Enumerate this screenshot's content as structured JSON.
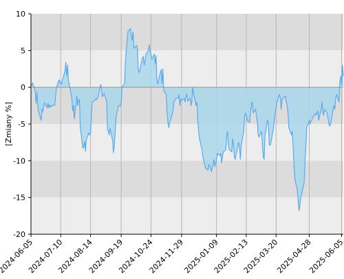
{
  "chart_data": {
    "type": "area",
    "title": "",
    "xlabel": "",
    "ylabel": "[Zmiany %]",
    "ylim": [
      -20,
      10
    ],
    "yticks": [
      10,
      5,
      0,
      -5,
      -10,
      -15,
      -20
    ],
    "ytick_labels": [
      "10",
      "5",
      "0",
      "-5",
      "-10",
      "-15",
      "-20"
    ],
    "xlim": [
      "2024-06-05",
      "2025-06-07"
    ],
    "xticks": [
      "2024-06-05",
      "2024-07-10",
      "2024-08-14",
      "2024-09-19",
      "2024-10-24",
      "2024-11-29",
      "2025-01-09",
      "2025-02-13",
      "2025-03-20",
      "2025-04-28",
      "2025-06-05"
    ],
    "grid": true,
    "legend": "none",
    "colors": {
      "band_dark": "#dcdcdc",
      "band_light": "#ededed",
      "line": "#5aa9f0",
      "fill": "#a9d7ea",
      "axis": "#000000",
      "vgrid": "#b4b4b4"
    },
    "series": [
      {
        "values": [
          [
            "2024-06-05",
            0.2
          ],
          [
            "2024-06-07",
            0.6
          ],
          [
            "2024-06-10",
            -0.5
          ],
          [
            "2024-06-11",
            -2.2
          ],
          [
            "2024-06-12",
            -0.7
          ],
          [
            "2024-06-13",
            -2.5
          ],
          [
            "2024-06-14",
            -3.3
          ],
          [
            "2024-06-17",
            -4.5
          ],
          [
            "2024-06-18",
            -3.0
          ],
          [
            "2024-06-19",
            -3.3
          ],
          [
            "2024-06-20",
            -2.5
          ],
          [
            "2024-06-21",
            -2.1
          ],
          [
            "2024-06-24",
            -2.8
          ],
          [
            "2024-06-25",
            -2.2
          ],
          [
            "2024-06-26",
            -2.8
          ],
          [
            "2024-06-27",
            -2.4
          ],
          [
            "2024-06-28",
            -2.7
          ],
          [
            "2024-07-01",
            -2.4
          ],
          [
            "2024-07-02",
            -2.5
          ],
          [
            "2024-07-03",
            -2.4
          ],
          [
            "2024-07-05",
            0.0
          ],
          [
            "2024-07-08",
            1.0
          ],
          [
            "2024-07-10",
            0.4
          ],
          [
            "2024-07-11",
            0.5
          ],
          [
            "2024-07-12",
            1.0
          ],
          [
            "2024-07-15",
            2.2
          ],
          [
            "2024-07-16",
            3.4
          ],
          [
            "2024-07-17",
            1.5
          ],
          [
            "2024-07-18",
            3.0
          ],
          [
            "2024-07-19",
            1.0
          ],
          [
            "2024-07-22",
            -0.8
          ],
          [
            "2024-07-23",
            -1.5
          ],
          [
            "2024-07-24",
            -3.2
          ],
          [
            "2024-07-25",
            -2.5
          ],
          [
            "2024-07-26",
            -4.3
          ],
          [
            "2024-07-29",
            -1.2
          ],
          [
            "2024-07-30",
            -2.5
          ],
          [
            "2024-07-31",
            -1.8
          ],
          [
            "2024-08-01",
            -1.7
          ],
          [
            "2024-08-02",
            -5.5
          ],
          [
            "2024-08-05",
            -8.3
          ],
          [
            "2024-08-06",
            -8.1
          ],
          [
            "2024-08-07",
            -7.4
          ],
          [
            "2024-08-08",
            -8.7
          ],
          [
            "2024-08-09",
            -7.2
          ],
          [
            "2024-08-12",
            -6.2
          ],
          [
            "2024-08-13",
            -6.5
          ],
          [
            "2024-08-14",
            -6.3
          ],
          [
            "2024-08-15",
            -4.0
          ],
          [
            "2024-08-16",
            -2.0
          ],
          [
            "2024-08-19",
            -1.8
          ],
          [
            "2024-08-20",
            -1.6
          ],
          [
            "2024-08-21",
            -1.7
          ],
          [
            "2024-08-22",
            -1.5
          ],
          [
            "2024-08-23",
            -1.2
          ],
          [
            "2024-08-26",
            0.4
          ],
          [
            "2024-08-27",
            -0.5
          ],
          [
            "2024-08-28",
            -1.3
          ],
          [
            "2024-08-29",
            -1.0
          ],
          [
            "2024-08-30",
            -0.8
          ],
          [
            "2024-09-02",
            -2.0
          ],
          [
            "2024-09-03",
            -5.8
          ],
          [
            "2024-09-04",
            -6.0
          ],
          [
            "2024-09-05",
            -6.5
          ],
          [
            "2024-09-06",
            -5.6
          ],
          [
            "2024-09-09",
            -7.3
          ],
          [
            "2024-09-10",
            -8.9
          ],
          [
            "2024-09-11",
            -7.8
          ],
          [
            "2024-09-12",
            -6.0
          ],
          [
            "2024-09-13",
            -4.0
          ],
          [
            "2024-09-16",
            -2.5
          ],
          [
            "2024-09-17",
            -2.5
          ],
          [
            "2024-09-18",
            -2.6
          ],
          [
            "2024-09-19",
            -2.3
          ],
          [
            "2024-09-20",
            0.0
          ],
          [
            "2024-09-23",
            0.5
          ],
          [
            "2024-09-24",
            3.5
          ],
          [
            "2024-09-25",
            5.0
          ],
          [
            "2024-09-26",
            6.5
          ],
          [
            "2024-09-27",
            7.6
          ],
          [
            "2024-09-30",
            8.0
          ],
          [
            "2024-10-01",
            7.0
          ],
          [
            "2024-10-02",
            6.4
          ],
          [
            "2024-10-03",
            7.5
          ],
          [
            "2024-10-04",
            5.3
          ],
          [
            "2024-10-07",
            5.7
          ],
          [
            "2024-10-08",
            5.4
          ],
          [
            "2024-10-09",
            2.5
          ],
          [
            "2024-10-10",
            2.0
          ],
          [
            "2024-10-11",
            2.4
          ],
          [
            "2024-10-14",
            4.0
          ],
          [
            "2024-10-15",
            4.2
          ],
          [
            "2024-10-16",
            3.0
          ],
          [
            "2024-10-17",
            3.6
          ],
          [
            "2024-10-18",
            4.5
          ],
          [
            "2024-10-21",
            5.0
          ],
          [
            "2024-10-22",
            5.8
          ],
          [
            "2024-10-23",
            4.8
          ],
          [
            "2024-10-24",
            4.5
          ],
          [
            "2024-10-25",
            3.8
          ],
          [
            "2024-10-28",
            4.5
          ],
          [
            "2024-10-29",
            3.2
          ],
          [
            "2024-10-30",
            4.3
          ],
          [
            "2024-10-31",
            1.0
          ],
          [
            "2024-11-01",
            0.5
          ],
          [
            "2024-11-04",
            2.0
          ],
          [
            "2024-11-05",
            2.4
          ],
          [
            "2024-11-06",
            0.5
          ],
          [
            "2024-11-07",
            2.5
          ],
          [
            "2024-11-08",
            -0.5
          ],
          [
            "2024-11-11",
            -1.0
          ],
          [
            "2024-11-12",
            -3.5
          ],
          [
            "2024-11-13",
            -4.8
          ],
          [
            "2024-11-14",
            -5.5
          ],
          [
            "2024-11-15",
            -4.8
          ],
          [
            "2024-11-18",
            -3.7
          ],
          [
            "2024-11-19",
            -3.0
          ],
          [
            "2024-11-20",
            -2.0
          ],
          [
            "2024-11-21",
            -1.8
          ],
          [
            "2024-11-22",
            -1.5
          ],
          [
            "2024-11-25",
            -1.5
          ],
          [
            "2024-11-26",
            -1.0
          ],
          [
            "2024-11-27",
            -2.5
          ],
          [
            "2024-11-28",
            -1.6
          ],
          [
            "2024-11-29",
            -1.8
          ],
          [
            "2024-12-02",
            -1.5
          ],
          [
            "2024-12-03",
            -2.0
          ],
          [
            "2024-12-04",
            -1.3
          ],
          [
            "2024-12-05",
            -0.9
          ],
          [
            "2024-12-06",
            -1.9
          ],
          [
            "2024-12-09",
            -1.5
          ],
          [
            "2024-12-10",
            -2.5
          ],
          [
            "2024-12-11",
            -2.0
          ],
          [
            "2024-12-12",
            0.0
          ],
          [
            "2024-12-13",
            -0.8
          ],
          [
            "2024-12-16",
            -2.5
          ],
          [
            "2024-12-17",
            -2.0
          ],
          [
            "2024-12-18",
            -4.5
          ],
          [
            "2024-12-19",
            -6.0
          ],
          [
            "2024-12-20",
            -7.0
          ],
          [
            "2024-12-23",
            -8.5
          ],
          [
            "2024-12-24",
            -9.5
          ],
          [
            "2024-12-27",
            -11.0
          ],
          [
            "2024-12-30",
            -11.3
          ],
          [
            "2024-12-31",
            -10.5
          ],
          [
            "2025-01-02",
            -11.0
          ],
          [
            "2025-01-03",
            -11.5
          ],
          [
            "2025-01-06",
            -9.8
          ],
          [
            "2025-01-07",
            -10.8
          ],
          [
            "2025-01-08",
            -10.3
          ],
          [
            "2025-01-09",
            -10.0
          ],
          [
            "2025-01-10",
            -9.0
          ],
          [
            "2025-01-13",
            -9.3
          ],
          [
            "2025-01-14",
            -9.0
          ],
          [
            "2025-01-15",
            -10.3
          ],
          [
            "2025-01-16",
            -9.5
          ],
          [
            "2025-01-17",
            -8.8
          ],
          [
            "2025-01-20",
            -8.5
          ],
          [
            "2025-01-21",
            -6.5
          ],
          [
            "2025-01-22",
            -6.0
          ],
          [
            "2025-01-23",
            -7.8
          ],
          [
            "2025-01-24",
            -8.5
          ],
          [
            "2025-01-27",
            -8.8
          ],
          [
            "2025-01-28",
            -7.0
          ],
          [
            "2025-01-29",
            -8.0
          ],
          [
            "2025-01-30",
            -9.5
          ],
          [
            "2025-01-31",
            -9.8
          ],
          [
            "2025-02-03",
            -8.0
          ],
          [
            "2025-02-04",
            -7.5
          ],
          [
            "2025-02-05",
            -8.2
          ],
          [
            "2025-02-06",
            -9.8
          ],
          [
            "2025-02-07",
            -8.0
          ],
          [
            "2025-02-10",
            -6.0
          ],
          [
            "2025-02-11",
            -4.0
          ],
          [
            "2025-02-12",
            -3.5
          ],
          [
            "2025-02-13",
            -3.8
          ],
          [
            "2025-02-14",
            -4.5
          ],
          [
            "2025-02-17",
            -4.8
          ],
          [
            "2025-02-18",
            -3.2
          ],
          [
            "2025-02-19",
            -2.5
          ],
          [
            "2025-02-20",
            -2.0
          ],
          [
            "2025-02-21",
            -3.5
          ],
          [
            "2025-02-24",
            -3.0
          ],
          [
            "2025-02-25",
            -4.0
          ],
          [
            "2025-02-26",
            -4.7
          ],
          [
            "2025-02-27",
            -6.5
          ],
          [
            "2025-02-28",
            -6.8
          ],
          [
            "2025-03-03",
            -6.0
          ],
          [
            "2025-03-04",
            -8.0
          ],
          [
            "2025-03-05",
            -9.5
          ],
          [
            "2025-03-06",
            -9.8
          ],
          [
            "2025-03-07",
            -6.5
          ],
          [
            "2025-03-10",
            -4.5
          ],
          [
            "2025-03-11",
            -5.0
          ],
          [
            "2025-03-12",
            -7.8
          ],
          [
            "2025-03-13",
            -7.9
          ],
          [
            "2025-03-14",
            -7.5
          ],
          [
            "2025-03-17",
            -5.5
          ],
          [
            "2025-03-18",
            -4.3
          ],
          [
            "2025-03-19",
            -3.5
          ],
          [
            "2025-03-20",
            -3.0
          ],
          [
            "2025-03-21",
            -2.0
          ],
          [
            "2025-03-24",
            -1.0
          ],
          [
            "2025-03-25",
            -1.5
          ],
          [
            "2025-03-26",
            -3.0
          ],
          [
            "2025-03-27",
            -1.7
          ],
          [
            "2025-03-28",
            -1.5
          ],
          [
            "2025-03-31",
            -1.2
          ],
          [
            "2025-04-01",
            -2.0
          ],
          [
            "2025-04-02",
            -2.5
          ],
          [
            "2025-04-03",
            -3.5
          ],
          [
            "2025-04-04",
            -5.5
          ],
          [
            "2025-04-07",
            -6.5
          ],
          [
            "2025-04-08",
            -6.0
          ],
          [
            "2025-04-09",
            -8.0
          ],
          [
            "2025-04-10",
            -10.5
          ],
          [
            "2025-04-11",
            -12.5
          ],
          [
            "2025-04-14",
            -14.0
          ],
          [
            "2025-04-15",
            -15.5
          ],
          [
            "2025-04-16",
            -16.8
          ],
          [
            "2025-04-17",
            -16.0
          ],
          [
            "2025-04-18",
            -15.0
          ],
          [
            "2025-04-22",
            -13.0
          ],
          [
            "2025-04-23",
            -10.0
          ],
          [
            "2025-04-24",
            -8.0
          ],
          [
            "2025-04-25",
            -5.5
          ],
          [
            "2025-04-28",
            -4.5
          ],
          [
            "2025-04-29",
            -5.0
          ],
          [
            "2025-04-30",
            -4.6
          ],
          [
            "2025-05-01",
            -4.5
          ],
          [
            "2025-05-02",
            -4.2
          ],
          [
            "2025-05-05",
            -3.6
          ],
          [
            "2025-05-06",
            -3.8
          ],
          [
            "2025-05-07",
            -3.5
          ],
          [
            "2025-05-08",
            -3.2
          ],
          [
            "2025-05-09",
            -4.5
          ],
          [
            "2025-05-12",
            -3.0
          ],
          [
            "2025-05-13",
            -2.0
          ],
          [
            "2025-05-14",
            -3.5
          ],
          [
            "2025-05-15",
            -3.8
          ],
          [
            "2025-05-16",
            -3.0
          ],
          [
            "2025-05-19",
            -3.5
          ],
          [
            "2025-05-20",
            -4.2
          ],
          [
            "2025-05-21",
            -5.0
          ],
          [
            "2025-05-22",
            -5.3
          ],
          [
            "2025-05-23",
            -5.0
          ],
          [
            "2025-05-26",
            -3.0
          ],
          [
            "2025-05-27",
            -2.5
          ],
          [
            "2025-05-28",
            -3.0
          ],
          [
            "2025-05-29",
            -1.5
          ],
          [
            "2025-05-30",
            -1.0
          ],
          [
            "2025-06-02",
            -2.0
          ],
          [
            "2025-06-03",
            0.8
          ],
          [
            "2025-06-04",
            1.5
          ],
          [
            "2025-06-05",
            0.3
          ],
          [
            "2025-06-06",
            3.0
          ],
          [
            "2025-06-07",
            1.5
          ]
        ]
      }
    ]
  }
}
